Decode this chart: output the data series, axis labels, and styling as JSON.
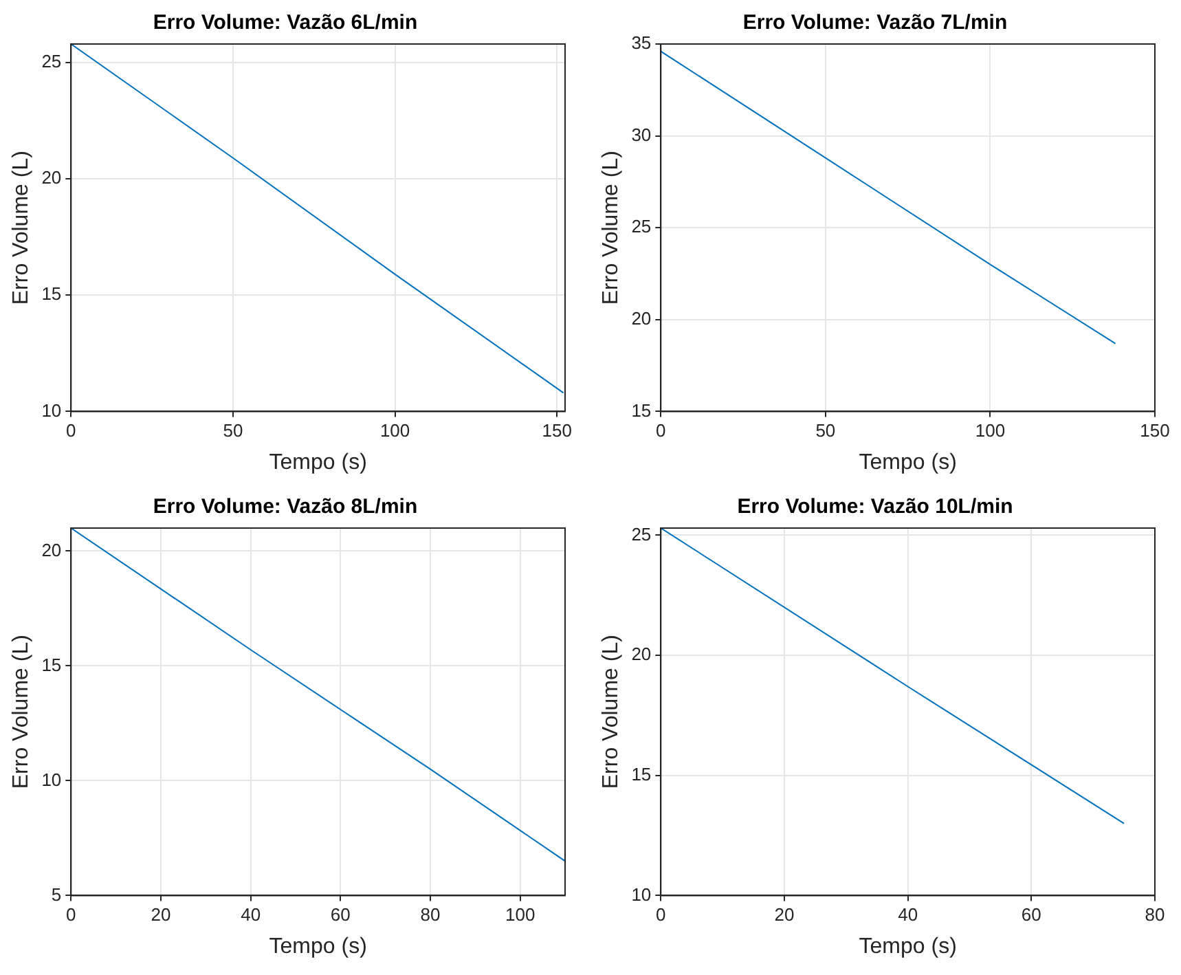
{
  "chart_data": [
    {
      "type": "line",
      "title": "Erro Volume: Vazão 6L/min",
      "xlabel": "Tempo (s)",
      "ylabel": "Erro Volume (L)",
      "x": [
        0,
        50,
        100,
        152
      ],
      "values": [
        25.8,
        20.9,
        15.9,
        10.8
      ],
      "color": "#0072bd",
      "xlim": [
        0,
        152.5
      ],
      "ylim": [
        10,
        25.8
      ],
      "xticks": [
        0,
        50,
        100,
        150
      ],
      "yticks": [
        10,
        15,
        20,
        25
      ],
      "grid": true
    },
    {
      "type": "line",
      "title": "Erro Volume: Vazão 7L/min",
      "xlabel": "Tempo (s)",
      "ylabel": "Erro Volume (L)",
      "x": [
        0,
        50,
        100,
        138
      ],
      "values": [
        34.6,
        28.8,
        23,
        18.7
      ],
      "color": "#0072bd",
      "xlim": [
        0,
        150
      ],
      "ylim": [
        15,
        35
      ],
      "xticks": [
        0,
        50,
        100,
        150
      ],
      "yticks": [
        15,
        20,
        25,
        30,
        35
      ],
      "grid": true
    },
    {
      "type": "line",
      "title": "Erro Volume: Vazão 8L/min",
      "xlabel": "Tempo (s)",
      "ylabel": "Erro Volume (L)",
      "x": [
        0,
        40,
        80,
        110
      ],
      "values": [
        21,
        15.7,
        10.5,
        6.5
      ],
      "color": "#0072bd",
      "xlim": [
        0,
        110
      ],
      "ylim": [
        5,
        21
      ],
      "xticks": [
        0,
        20,
        40,
        60,
        80,
        100
      ],
      "yticks": [
        5,
        10,
        15,
        20
      ],
      "grid": true
    },
    {
      "type": "line",
      "title": "Erro Volume: Vazão 10L/min",
      "xlabel": "Tempo (s)",
      "ylabel": "Erro Volume (L)",
      "x": [
        0,
        40,
        75
      ],
      "values": [
        25.3,
        18.7,
        13
      ],
      "color": "#0072bd",
      "xlim": [
        0,
        80
      ],
      "ylim": [
        10,
        25.3
      ],
      "xticks": [
        0,
        20,
        40,
        60,
        80
      ],
      "yticks": [
        10,
        15,
        20,
        25
      ],
      "grid": true
    }
  ]
}
